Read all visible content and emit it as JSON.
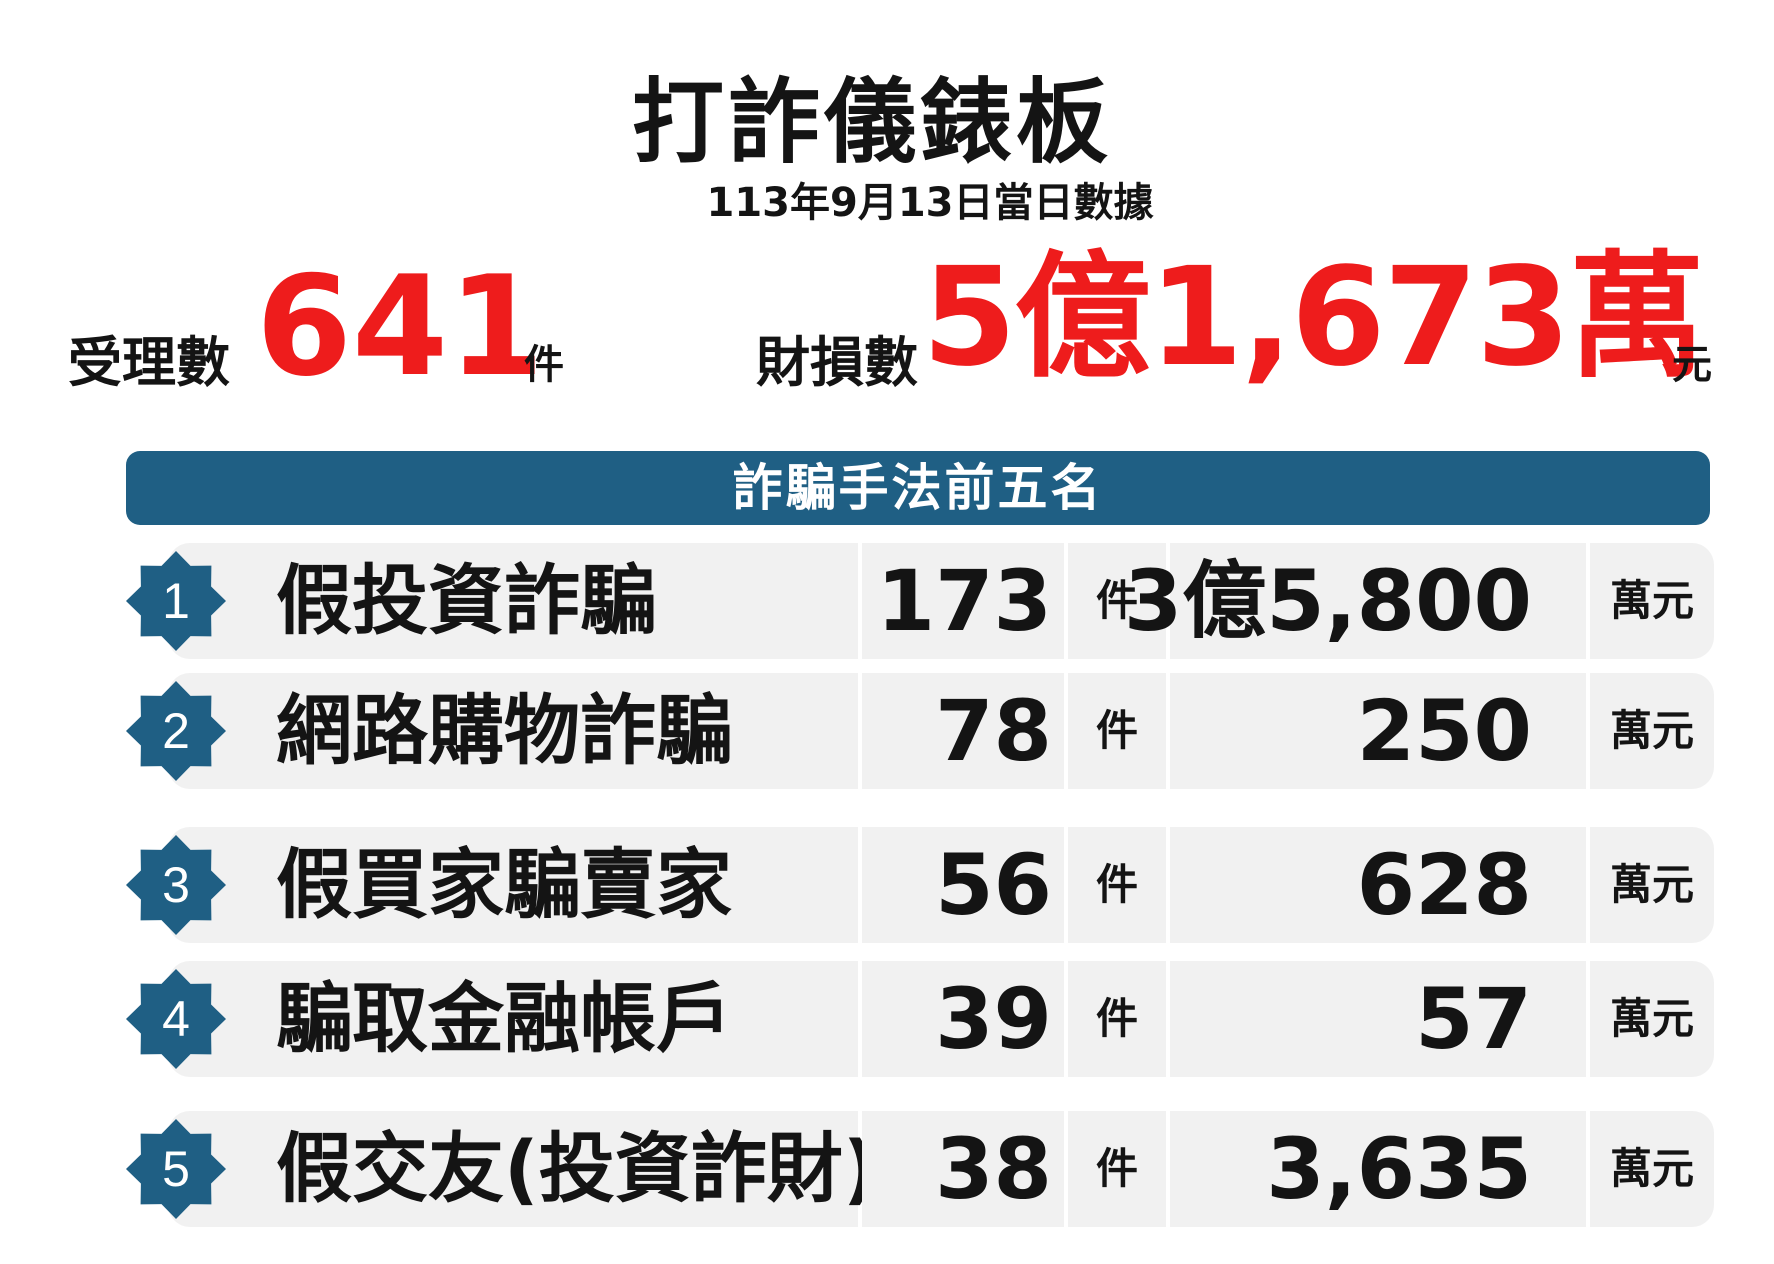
{
  "header": {
    "title": "打詐儀錶板",
    "date": "113年9月13日當日數據"
  },
  "stats": {
    "cases_label": "受理數",
    "cases_value": "641",
    "cases_unit": "件",
    "loss_label": "財損數",
    "loss_value": "5億1,673萬",
    "loss_unit": "元"
  },
  "ranking": {
    "title": "詐騙手法前五名",
    "rows": [
      {
        "rank": "1",
        "name": "假投資詐騙",
        "count": "173",
        "count_unit": "件",
        "amount": "3億5,800",
        "amount_unit": "萬元"
      },
      {
        "rank": "2",
        "name": "網路購物詐騙",
        "count": "78",
        "count_unit": "件",
        "amount": "250",
        "amount_unit": "萬元"
      },
      {
        "rank": "3",
        "name": "假買家騙賣家",
        "count": "56",
        "count_unit": "件",
        "amount": "628",
        "amount_unit": "萬元"
      },
      {
        "rank": "4",
        "name": "騙取金融帳戶",
        "count": "39",
        "count_unit": "件",
        "amount": "57",
        "amount_unit": "萬元"
      },
      {
        "rank": "5",
        "name": "假交友(投資詐財)",
        "count": "38",
        "count_unit": "件",
        "amount": "3,635",
        "amount_unit": "萬元"
      }
    ]
  },
  "colors": {
    "accent_red": "#ee1c1c",
    "header_blue": "#1f5f84",
    "row_bg": "#f1f1f1"
  }
}
